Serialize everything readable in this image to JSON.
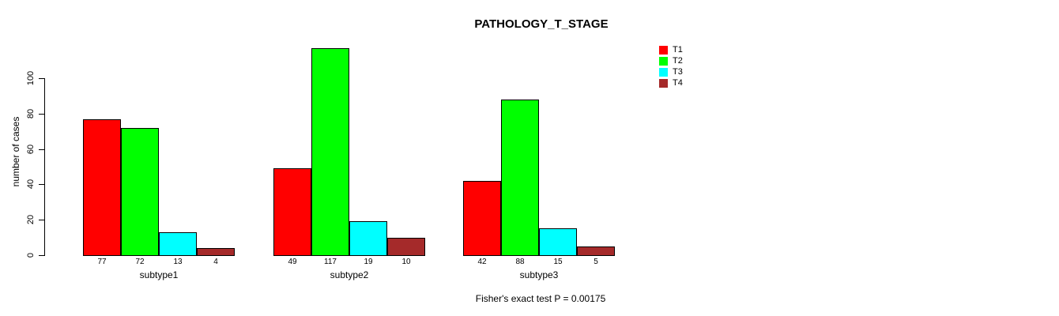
{
  "title": "PATHOLOGY_T_STAGE",
  "caption": "Fisher's exact test P = 0.00175",
  "chart_data": {
    "type": "bar",
    "title": "PATHOLOGY_T_STAGE",
    "xlabel": "",
    "ylabel": "number of cases",
    "categories": [
      "subtype1",
      "subtype2",
      "subtype3"
    ],
    "series": [
      {
        "name": "T1",
        "color": "#ff0000",
        "values": [
          77,
          49,
          42
        ]
      },
      {
        "name": "T2",
        "color": "#00ff00",
        "values": [
          72,
          117,
          88
        ]
      },
      {
        "name": "T3",
        "color": "#00ffff",
        "values": [
          13,
          19,
          15
        ]
      },
      {
        "name": "T4",
        "color": "#a52a2a",
        "values": [
          4,
          10,
          5
        ]
      }
    ],
    "bar_value_labels": [
      [
        "77",
        "72",
        "13",
        "4"
      ],
      [
        "49",
        "117",
        "19",
        "10"
      ],
      [
        "42",
        "88",
        "15",
        "5"
      ]
    ],
    "yticks": [
      0,
      20,
      40,
      60,
      80,
      100
    ],
    "ylim": [
      0,
      120
    ],
    "grid": false,
    "legend_position": "top-right",
    "legend_entries": [
      "T1",
      "T2",
      "T3",
      "T4"
    ],
    "annotation": "Fisher's exact test P = 0.00175",
    "axis_color": "#000000",
    "background_color": "#ffffff"
  }
}
